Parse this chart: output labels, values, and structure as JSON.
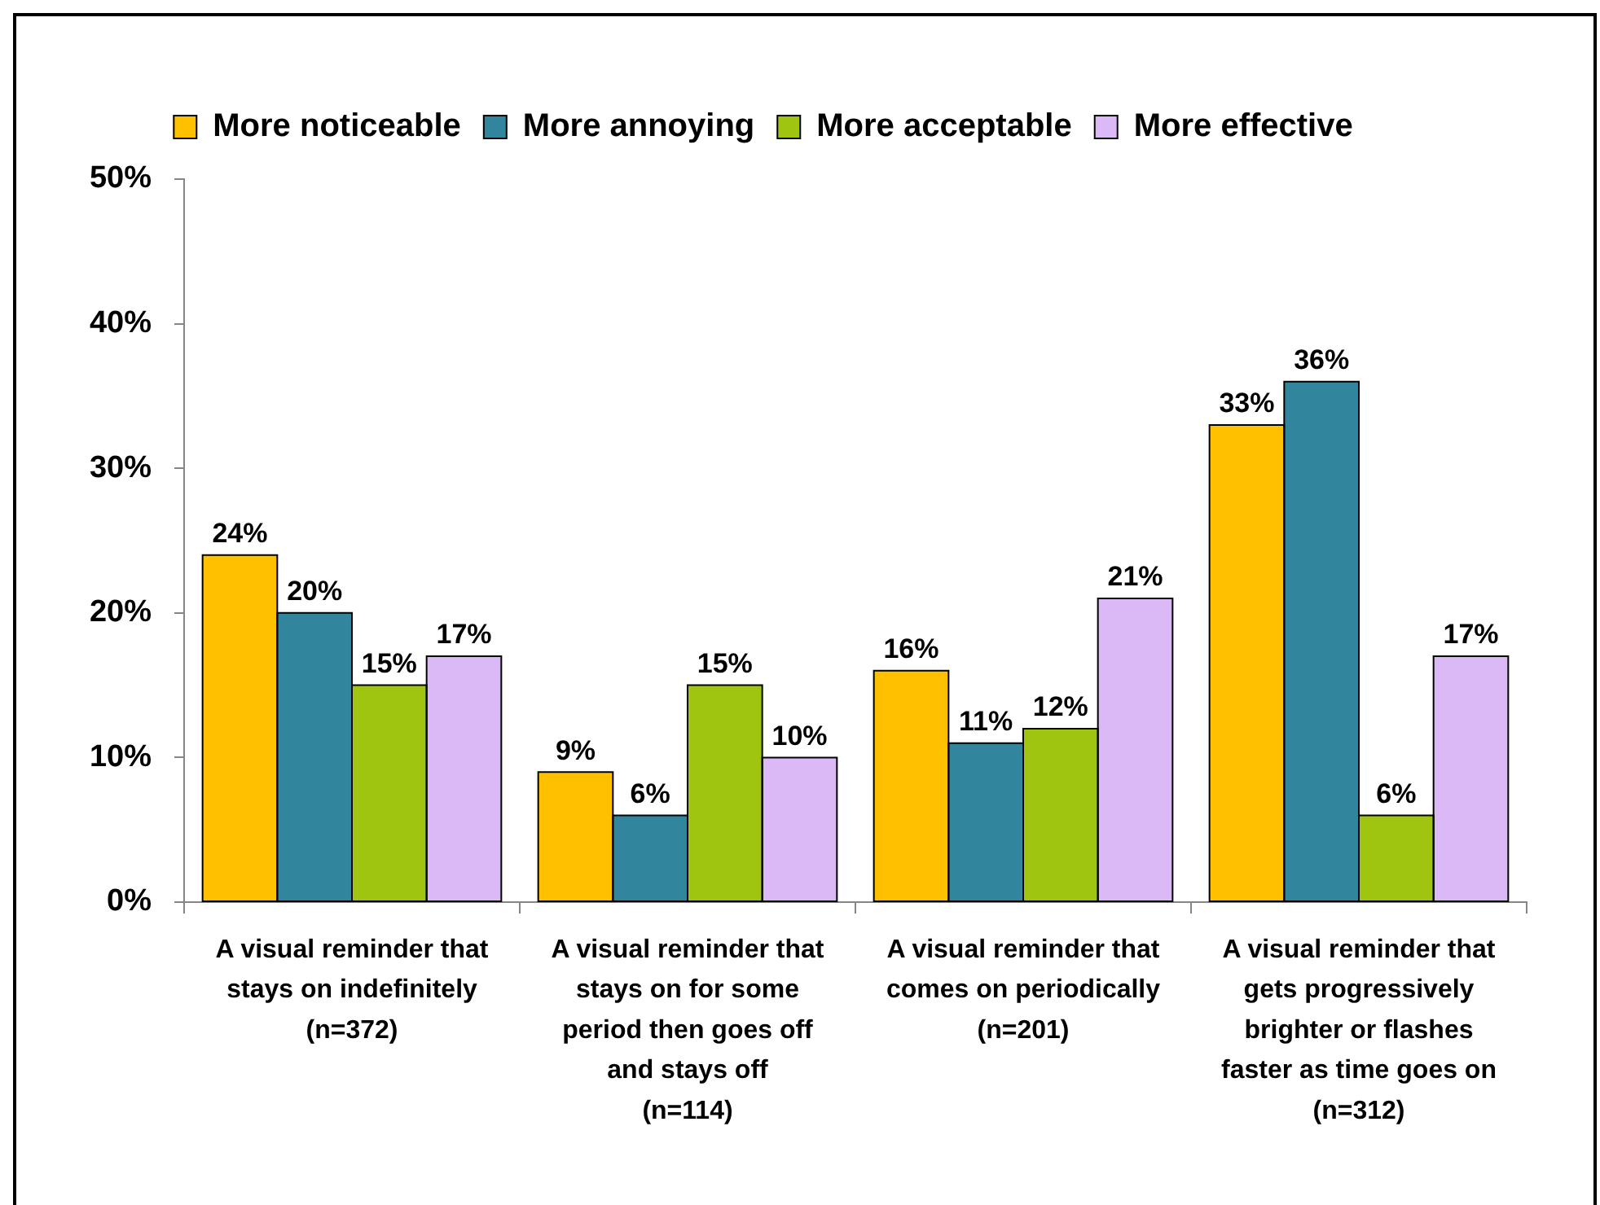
{
  "chart_data": {
    "type": "bar",
    "categories": [
      "A visual reminder that\nstays on indefinitely\n(n=372)",
      "A visual reminder that\nstays on for some\nperiod then goes off\nand stays off\n(n=114)",
      "A visual reminder that\ncomes on periodically\n(n=201)",
      "A visual reminder that\ngets progressively\nbrighter or flashes\nfaster as time goes on\n(n=312)"
    ],
    "series": [
      {
        "name": "More noticeable",
        "color": "#ffc000",
        "values": [
          24,
          9,
          16,
          33
        ],
        "value_labels": [
          "24%",
          "9%",
          "16%",
          "33%"
        ]
      },
      {
        "name": "More annoying",
        "color": "#31859c",
        "values": [
          20,
          6,
          11,
          36
        ],
        "value_labels": [
          "20%",
          "6%",
          "11%",
          "36%"
        ]
      },
      {
        "name": "More acceptable",
        "color": "#9fc511",
        "values": [
          15,
          15,
          12,
          6
        ],
        "value_labels": [
          "15%",
          "15%",
          "12%",
          "6%"
        ]
      },
      {
        "name": "More effective",
        "color": "#dbb9f6",
        "values": [
          17,
          10,
          21,
          17
        ],
        "value_labels": [
          "17%",
          "10%",
          "21%",
          "17%"
        ]
      }
    ],
    "ylim": [
      0,
      50
    ],
    "yticks": [
      {
        "value": 0,
        "label": "0%"
      },
      {
        "value": 10,
        "label": "10%"
      },
      {
        "value": 20,
        "label": "20%"
      },
      {
        "value": 30,
        "label": "30%"
      },
      {
        "value": 40,
        "label": "40%"
      },
      {
        "value": 50,
        "label": "50%"
      }
    ],
    "legend": "top"
  }
}
